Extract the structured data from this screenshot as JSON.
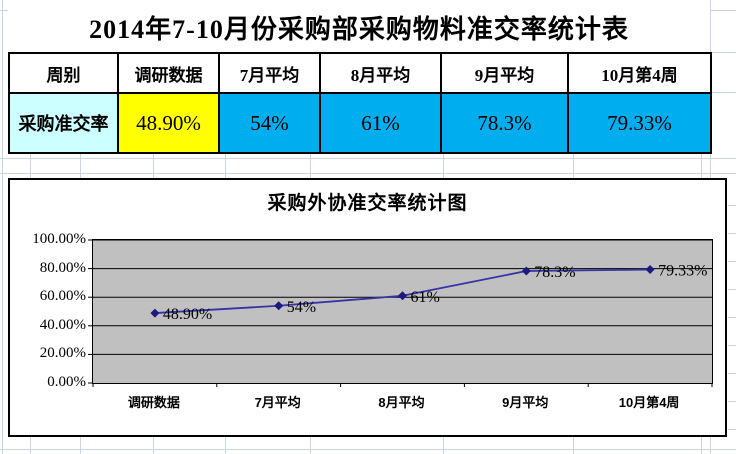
{
  "title": "2014年7-10月份采购部采购物料准交率统计表",
  "table": {
    "headers": [
      "周别",
      "调研数据",
      "7月平均",
      "8月平均",
      "9月平均",
      "10月第4周"
    ],
    "row": {
      "label": "采购准交率",
      "values": [
        "48.90%",
        "54%",
        "61%",
        "78.3%",
        "79.33%"
      ]
    },
    "cell_colors": {
      "label_bg": "#CCFFFF",
      "survey_bg": "#FFFF00",
      "month_bg": "#00AEEF"
    }
  },
  "chart_data": {
    "type": "line",
    "title": "采购外协准交率统计图",
    "categories": [
      "调研数据",
      "7月平均",
      "8月平均",
      "9月平均",
      "10月第4周"
    ],
    "values": [
      48.9,
      54,
      61,
      78.3,
      79.33
    ],
    "point_labels": [
      "48.90%",
      "54%",
      "61%",
      "78.3%",
      "79.33%"
    ],
    "ylabel": "",
    "xlabel": "",
    "ylim": [
      0,
      100
    ],
    "y_tick_values": [
      100,
      80,
      60,
      40,
      20,
      0
    ],
    "y_tick_labels": [
      "100.00%",
      "80.00%",
      "60.00%",
      "40.00%",
      "20.00%",
      "0.00%"
    ],
    "grid": "horizontal",
    "legend": "none",
    "plot_bg": "#C0C0C0",
    "line_color": "#3333A6",
    "marker_color": "#1A1A80",
    "marker": "diamond"
  }
}
